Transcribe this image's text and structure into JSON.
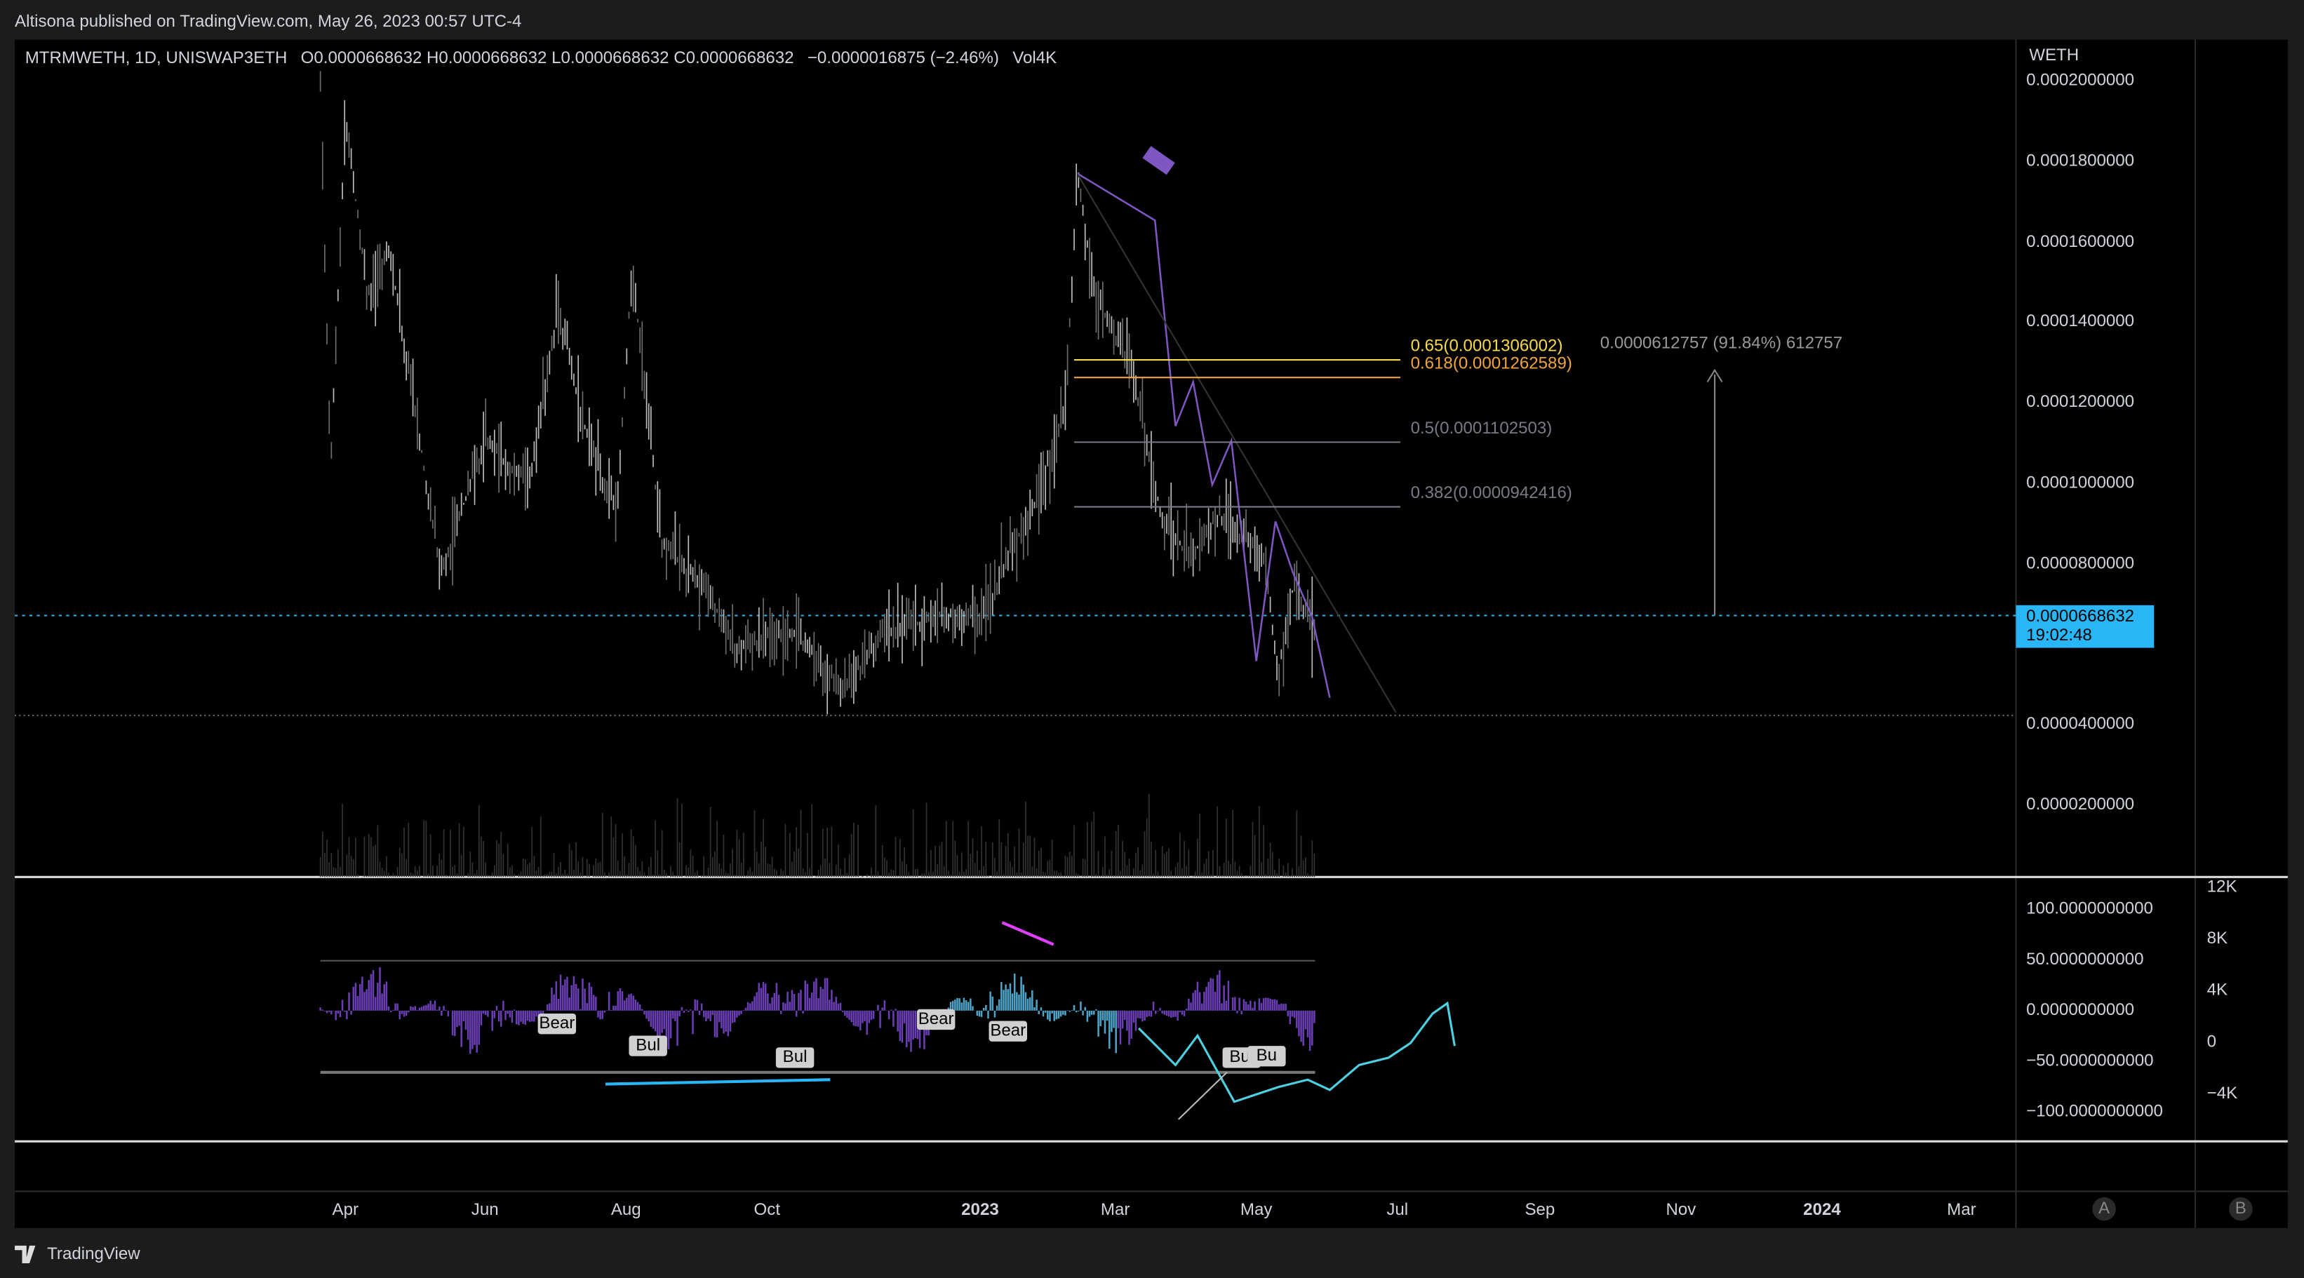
{
  "header": {
    "published": "Altisona published on TradingView.com, May 26, 2023 00:57 UTC-4"
  },
  "legend": {
    "symbol": "MTRMWETH, 1D, UNISWAP3ETH",
    "ohlc": "O0.0000668632 H0.0000668632 L0.0000668632 C0.0000668632",
    "change": "−0.0000016875 (−2.46%)",
    "volume": "Vol4K"
  },
  "price_axis": {
    "currency": "WETH",
    "ticks": [
      "0.0002000000",
      "0.0001800000",
      "0.0001600000",
      "0.0001400000",
      "0.0001200000",
      "0.0001000000",
      "0.0000800000",
      "0.0000400000",
      "0.0000200000"
    ]
  },
  "price_label": {
    "price": "0.0000668632",
    "countdown": "19:02:48"
  },
  "fibonacci": [
    {
      "label": "0.65(0.0001306002)",
      "color": "#f5d94a"
    },
    {
      "label": "0.618(0.0001262589)",
      "color": "#f0a53c"
    },
    {
      "label": "0.5(0.0001102503)",
      "color": "#787b86"
    },
    {
      "label": "0.382(0.0000942416)",
      "color": "#787b86"
    }
  ],
  "measure": "0.0000612757 (91.84%) 612757",
  "indicator_axis": [
    "100.0000000000",
    "50.0000000000",
    "0.0000000000",
    "−50.0000000000",
    "−100.0000000000"
  ],
  "volume_axis": [
    "12K",
    "8K",
    "4K",
    "0",
    "−4K"
  ],
  "time_axis": [
    {
      "label": "Apr",
      "bold": false
    },
    {
      "label": "Jun",
      "bold": false
    },
    {
      "label": "Aug",
      "bold": false
    },
    {
      "label": "Oct",
      "bold": false
    },
    {
      "label": "2023",
      "bold": true
    },
    {
      "label": "Mar",
      "bold": false
    },
    {
      "label": "May",
      "bold": false
    },
    {
      "label": "Jul",
      "bold": false
    },
    {
      "label": "Sep",
      "bold": false
    },
    {
      "label": "Nov",
      "bold": false
    },
    {
      "label": "2024",
      "bold": true
    },
    {
      "label": "Mar",
      "bold": false
    }
  ],
  "indicator_labels": [
    "Bear",
    "Bul",
    "Bul",
    "Bear",
    "Bear",
    "Bul",
    "Bu"
  ],
  "buttons": [
    "A",
    "B"
  ],
  "footer": "TradingView"
}
